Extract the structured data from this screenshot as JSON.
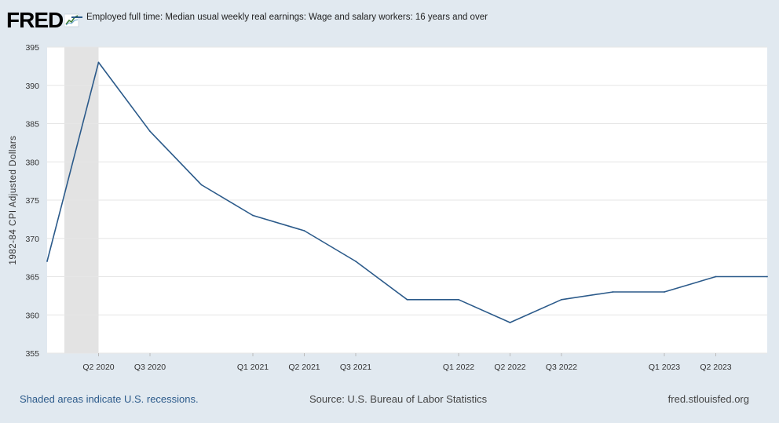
{
  "header": {
    "logo_text": "FRED",
    "legend_label": "Employed full time: Median usual weekly real earnings: Wage and salary workers: 16 years and over"
  },
  "footer": {
    "recession_note": "Shaded areas indicate U.S. recessions.",
    "source": "Source: U.S. Bureau of Labor Statistics",
    "site": "fred.stlouisfed.org"
  },
  "colors": {
    "series_line": "#2b5a8a",
    "recession_shade": "#e3e3e3",
    "plot_background": "#ffffff",
    "page_background": "#e1e9f0",
    "gridline": "#e6e6e6"
  },
  "chart_data": {
    "type": "line",
    "ylabel": "1982-84 CPI Adjusted Dollars",
    "ylim": [
      355,
      395
    ],
    "yticks": [
      355,
      360,
      365,
      370,
      375,
      380,
      385,
      390,
      395
    ],
    "grid": true,
    "x": [
      "Q1 2020",
      "Q2 2020",
      "Q3 2020",
      "Q4 2020",
      "Q1 2021",
      "Q2 2021",
      "Q3 2021",
      "Q4 2021",
      "Q1 2022",
      "Q2 2022",
      "Q3 2022",
      "Q4 2022",
      "Q1 2023",
      "Q2 2023",
      "Q3 2023"
    ],
    "xtick_labels": [
      "Q2 2020",
      "Q3 2020",
      "Q1 2021",
      "Q2 2021",
      "Q3 2021",
      "Q1 2022",
      "Q2 2022",
      "Q3 2022",
      "Q1 2023",
      "Q2 2023"
    ],
    "series": [
      {
        "values": [
          367,
          393,
          384,
          377,
          373,
          371,
          367,
          362,
          362,
          359,
          362,
          363,
          363,
          365,
          365
        ]
      }
    ],
    "recessions": [
      [
        "Q1 2020",
        "Q2 2020"
      ]
    ]
  }
}
